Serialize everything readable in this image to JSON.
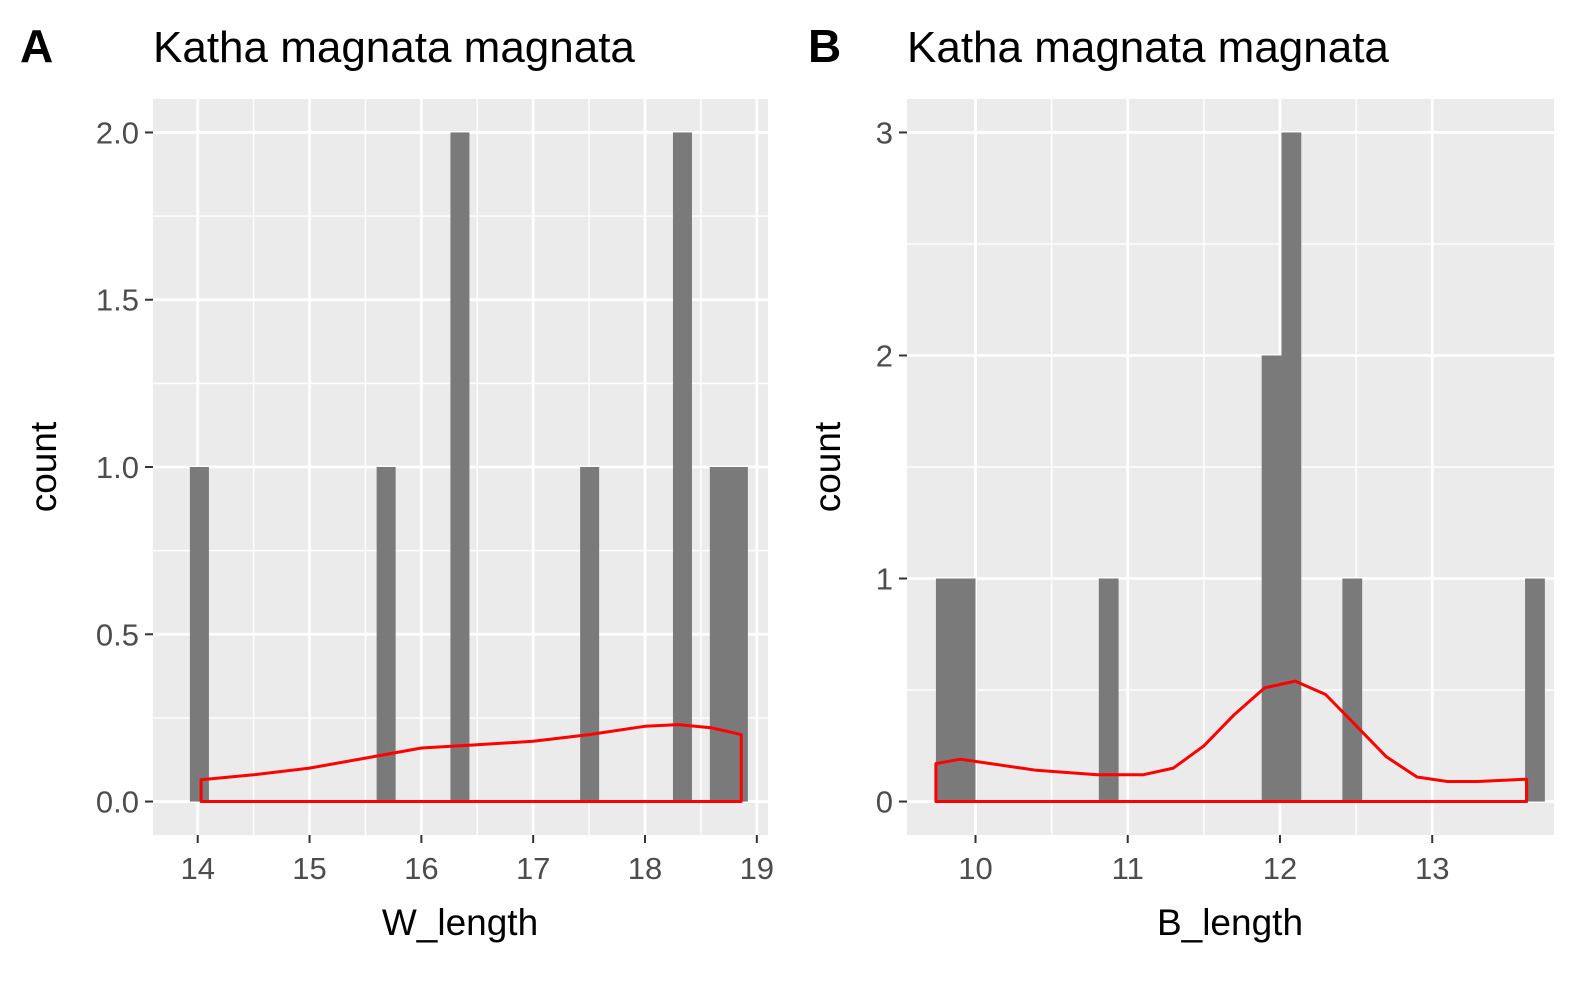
{
  "chart_data": [
    {
      "panel": "A",
      "type": "bar",
      "title": "Katha magnata magnata",
      "xlabel": "W_length",
      "ylabel": "count",
      "xlim": [
        13.6,
        19.1
      ],
      "ylim": [
        -0.1,
        2.1
      ],
      "xticks": [
        14,
        15,
        16,
        17,
        18,
        19
      ],
      "xtick_labels": [
        "14",
        "15",
        "16",
        "17",
        "18",
        "19"
      ],
      "yticks": [
        0,
        0.5,
        1,
        1.5,
        2
      ],
      "ytick_labels": [
        "0.0",
        "0.5",
        "1.0",
        "1.5",
        "2.0"
      ],
      "grid": true,
      "bar_color": "#7a7a7a",
      "bars": [
        {
          "x0": 13.93,
          "x1": 14.1,
          "count": 1
        },
        {
          "x0": 15.6,
          "x1": 15.77,
          "count": 1
        },
        {
          "x0": 16.26,
          "x1": 16.43,
          "count": 2
        },
        {
          "x0": 17.42,
          "x1": 17.59,
          "count": 1
        },
        {
          "x0": 18.25,
          "x1": 18.42,
          "count": 2
        },
        {
          "x0": 18.58,
          "x1": 18.92,
          "count": 1
        }
      ],
      "density": {
        "color": "#ff0000",
        "x": [
          14.03,
          14.5,
          15.0,
          15.5,
          16.0,
          16.5,
          17.0,
          17.5,
          18.0,
          18.3,
          18.6,
          18.86
        ],
        "y": [
          0.065,
          0.08,
          0.1,
          0.13,
          0.16,
          0.17,
          0.18,
          0.2,
          0.225,
          0.23,
          0.22,
          0.2
        ]
      }
    },
    {
      "panel": "B",
      "type": "bar",
      "title": "Katha magnata magnata",
      "xlabel": "B_length",
      "ylabel": "count",
      "xlim": [
        9.55,
        13.8
      ],
      "ylim": [
        -0.15,
        3.15
      ],
      "xticks": [
        10,
        11,
        12,
        13
      ],
      "xtick_labels": [
        "10",
        "11",
        "12",
        "13"
      ],
      "yticks": [
        0,
        1,
        2,
        3
      ],
      "ytick_labels": [
        "0",
        "1",
        "2",
        "3"
      ],
      "grid": true,
      "bar_color": "#7a7a7a",
      "bars": [
        {
          "x0": 9.74,
          "x1": 10.0,
          "count": 1
        },
        {
          "x0": 10.81,
          "x1": 10.94,
          "count": 1
        },
        {
          "x0": 11.88,
          "x1": 12.01,
          "count": 2
        },
        {
          "x0": 12.01,
          "x1": 12.14,
          "count": 3
        },
        {
          "x0": 12.41,
          "x1": 12.54,
          "count": 1
        },
        {
          "x0": 13.61,
          "x1": 13.74,
          "count": 1
        }
      ],
      "density": {
        "color": "#ff0000",
        "x": [
          9.74,
          9.9,
          10.1,
          10.4,
          10.8,
          11.1,
          11.3,
          11.5,
          11.7,
          11.9,
          12.1,
          12.3,
          12.5,
          12.7,
          12.9,
          13.1,
          13.3,
          13.62
        ],
        "y": [
          0.17,
          0.19,
          0.17,
          0.14,
          0.12,
          0.12,
          0.15,
          0.25,
          0.39,
          0.51,
          0.54,
          0.48,
          0.34,
          0.2,
          0.11,
          0.09,
          0.09,
          0.1
        ]
      }
    }
  ]
}
